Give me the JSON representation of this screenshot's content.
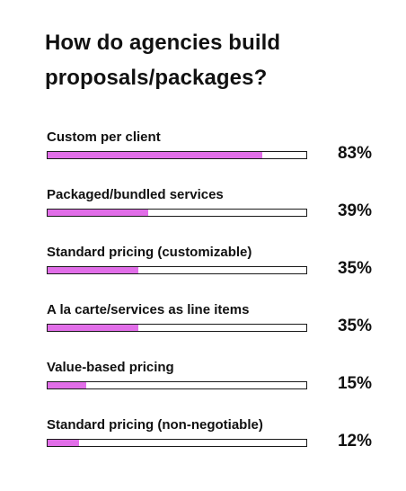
{
  "chart_data": {
    "type": "bar",
    "orientation": "horizontal",
    "title": "How do agencies build proposals/packages?",
    "categories": [
      "Custom per client",
      "Packaged/bundled services",
      "Standard pricing (customizable)",
      "A la carte/services as line items",
      "Value-based pricing",
      "Standard pricing (non-negotiable)"
    ],
    "values": [
      83,
      39,
      35,
      35,
      15,
      12
    ],
    "value_labels": [
      "83%",
      "39%",
      "35%",
      "35%",
      "15%",
      "12%"
    ],
    "xlim": [
      0,
      100
    ],
    "unit": "%",
    "grid": false,
    "legend": "none",
    "colors": {
      "fill": "#e16ee8",
      "track_border": "#1a1a1a",
      "text": "#111111"
    }
  }
}
